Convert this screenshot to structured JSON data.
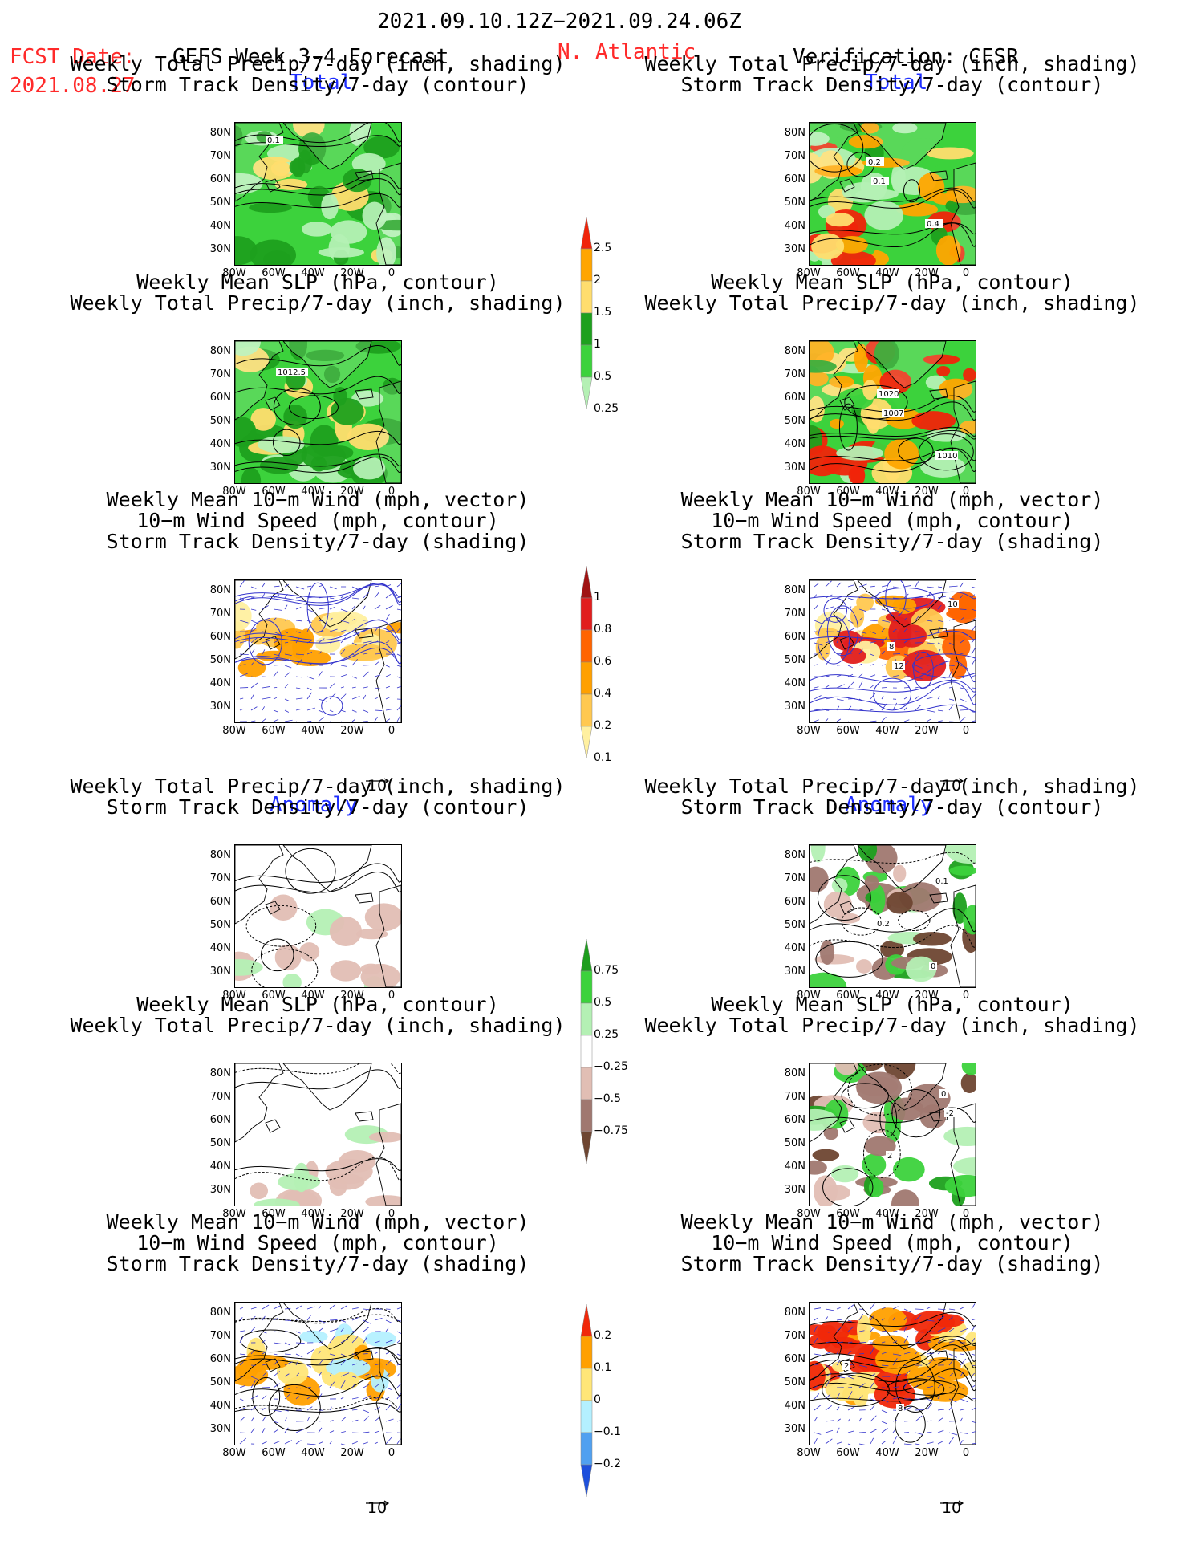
{
  "header": {
    "period": "2021.09.10.12Z−2021.09.24.06Z",
    "fcst_label": "FCST Date:",
    "fcst_date": "2021.08.27",
    "model": "GEFS Week 3-4 Forecast",
    "region": "N. Atlantic",
    "verification": "Verification: CFSR"
  },
  "sections": {
    "total": "Total",
    "anomaly": "Anomaly"
  },
  "panel_titles": {
    "precip": [
      "Weekly Total Precip/7-day (inch, shading)",
      "Storm Track Density/7-day (contour)"
    ],
    "slp": [
      "Weekly Mean SLP (hPa, contour)",
      "Weekly Total Precip/7-day (inch, shading)"
    ],
    "wind": [
      "Weekly Mean 10−m Wind (mph, vector)",
      "10−m Wind Speed (mph, contour)",
      "Storm Track Density/7-day (shading)"
    ]
  },
  "axes": {
    "lat_ticks": [
      "80N",
      "70N",
      "60N",
      "50N",
      "40N",
      "30N"
    ],
    "lon_ticks": [
      "80W",
      "60W",
      "40W",
      "20W",
      "0"
    ]
  },
  "vector_ref": "10",
  "contour_labels": {
    "fc_precip": [
      "0.1"
    ],
    "obs_precip": [
      "0.1",
      "0.4",
      "0.2"
    ],
    "fc_slp": [
      "1012.5"
    ],
    "obs_slp": [
      "1007",
      "1010",
      "1020"
    ],
    "obs_wind": [
      "12",
      "10",
      "8"
    ],
    "obs_anom_precip": [
      "0.1",
      "0.2",
      "0"
    ],
    "obs_anom_slp": [
      "-2",
      "2",
      "0"
    ],
    "obs_anom_wind": [
      "2",
      "8"
    ]
  },
  "colorbars": {
    "precip_total": {
      "labels": [
        "2.5",
        "2",
        "1.5",
        "1",
        "0.5",
        "0.25"
      ],
      "colors": [
        "#f0240a",
        "#ffa500",
        "#ffdd6e",
        "#1ea01e",
        "#3cd23c",
        "#b4f0b4"
      ]
    },
    "track_total": {
      "labels": [
        "1",
        "0.8",
        "0.6",
        "0.4",
        "0.2",
        "0.1"
      ],
      "colors": [
        "#a01414",
        "#e11e1e",
        "#ff6400",
        "#ffa000",
        "#ffc850",
        "#fff0a0"
      ]
    },
    "precip_anom": {
      "labels": [
        "0.75",
        "0.5",
        "0.25",
        "−0.25",
        "−0.5",
        "−0.75"
      ],
      "colors": [
        "#1e9e1e",
        "#3cd23c",
        "#b4f0b4",
        "#ffffff",
        "#e1beb4",
        "#a07870",
        "#6e4632"
      ]
    },
    "track_anom": {
      "labels": [
        "0.2",
        "0.1",
        "0",
        "−0.1",
        "−0.2"
      ],
      "colors": [
        "#f0280a",
        "#ffa000",
        "#ffe678",
        "#b4f0ff",
        "#50a0f0",
        "#1e50dc"
      ]
    }
  }
}
